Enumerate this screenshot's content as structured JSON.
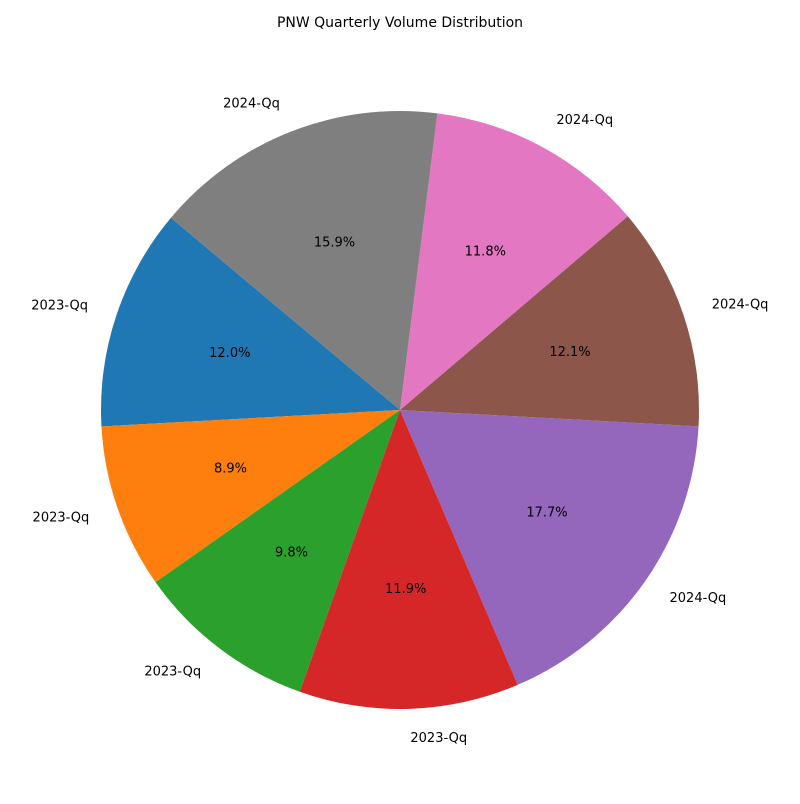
{
  "chart_data": {
    "type": "pie",
    "title": "PNW Quarterly Volume Distribution",
    "start_angle_deg": 140,
    "direction": "counterclockwise",
    "slices": [
      {
        "label": "2023-Qq",
        "percent": 12.0,
        "display": "12.0%",
        "color": "#1f77b4"
      },
      {
        "label": "2023-Qq",
        "percent": 8.9,
        "display": "8.9%",
        "color": "#ff7f0e"
      },
      {
        "label": "2023-Qq",
        "percent": 9.8,
        "display": "9.8%",
        "color": "#2ca02c"
      },
      {
        "label": "2023-Qq",
        "percent": 11.9,
        "display": "11.9%",
        "color": "#d62728"
      },
      {
        "label": "2024-Qq",
        "percent": 17.7,
        "display": "17.7%",
        "color": "#9467bd"
      },
      {
        "label": "2024-Qq",
        "percent": 12.1,
        "display": "12.1%",
        "color": "#8c564b"
      },
      {
        "label": "2024-Qq",
        "percent": 11.8,
        "display": "11.8%",
        "color": "#e377c2"
      },
      {
        "label": "2024-Qq",
        "percent": 15.9,
        "display": "15.9%",
        "color": "#7f7f7f"
      }
    ]
  }
}
